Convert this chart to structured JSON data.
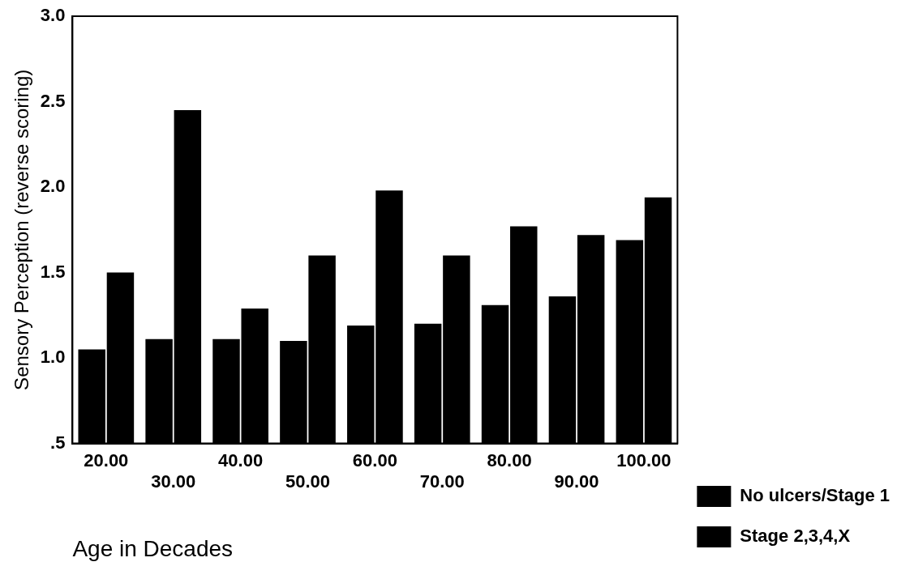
{
  "chart_data": {
    "type": "bar",
    "xlabel": "Age in Decades",
    "ylabel": "Sensory Perception (reverse scoring)",
    "categories": [
      "20.00",
      "30.00",
      "40.00",
      "50.00",
      "60.00",
      "70.00",
      "80.00",
      "90.00",
      "100.00"
    ],
    "series": [
      {
        "name": "No ulcers/Stage 1",
        "color": "#000000",
        "values": [
          1.05,
          1.11,
          1.11,
          1.1,
          1.19,
          1.2,
          1.31,
          1.36,
          1.69
        ]
      },
      {
        "name": "Stage 2,3,4,X",
        "color": "#000000",
        "values": [
          1.5,
          2.45,
          1.29,
          1.6,
          1.98,
          1.6,
          1.77,
          1.72,
          1.94
        ]
      }
    ],
    "ylim": [
      0.5,
      3.0
    ],
    "yticks": [
      {
        "value": 0.5,
        "label": ".5"
      },
      {
        "value": 1.0,
        "label": "1.0"
      },
      {
        "value": 1.5,
        "label": "1.5"
      },
      {
        "value": 2.0,
        "label": "2.0"
      },
      {
        "value": 2.5,
        "label": "2.5"
      },
      {
        "value": 3.0,
        "label": "3.0"
      }
    ],
    "grid": false,
    "legend": "bottom right"
  }
}
